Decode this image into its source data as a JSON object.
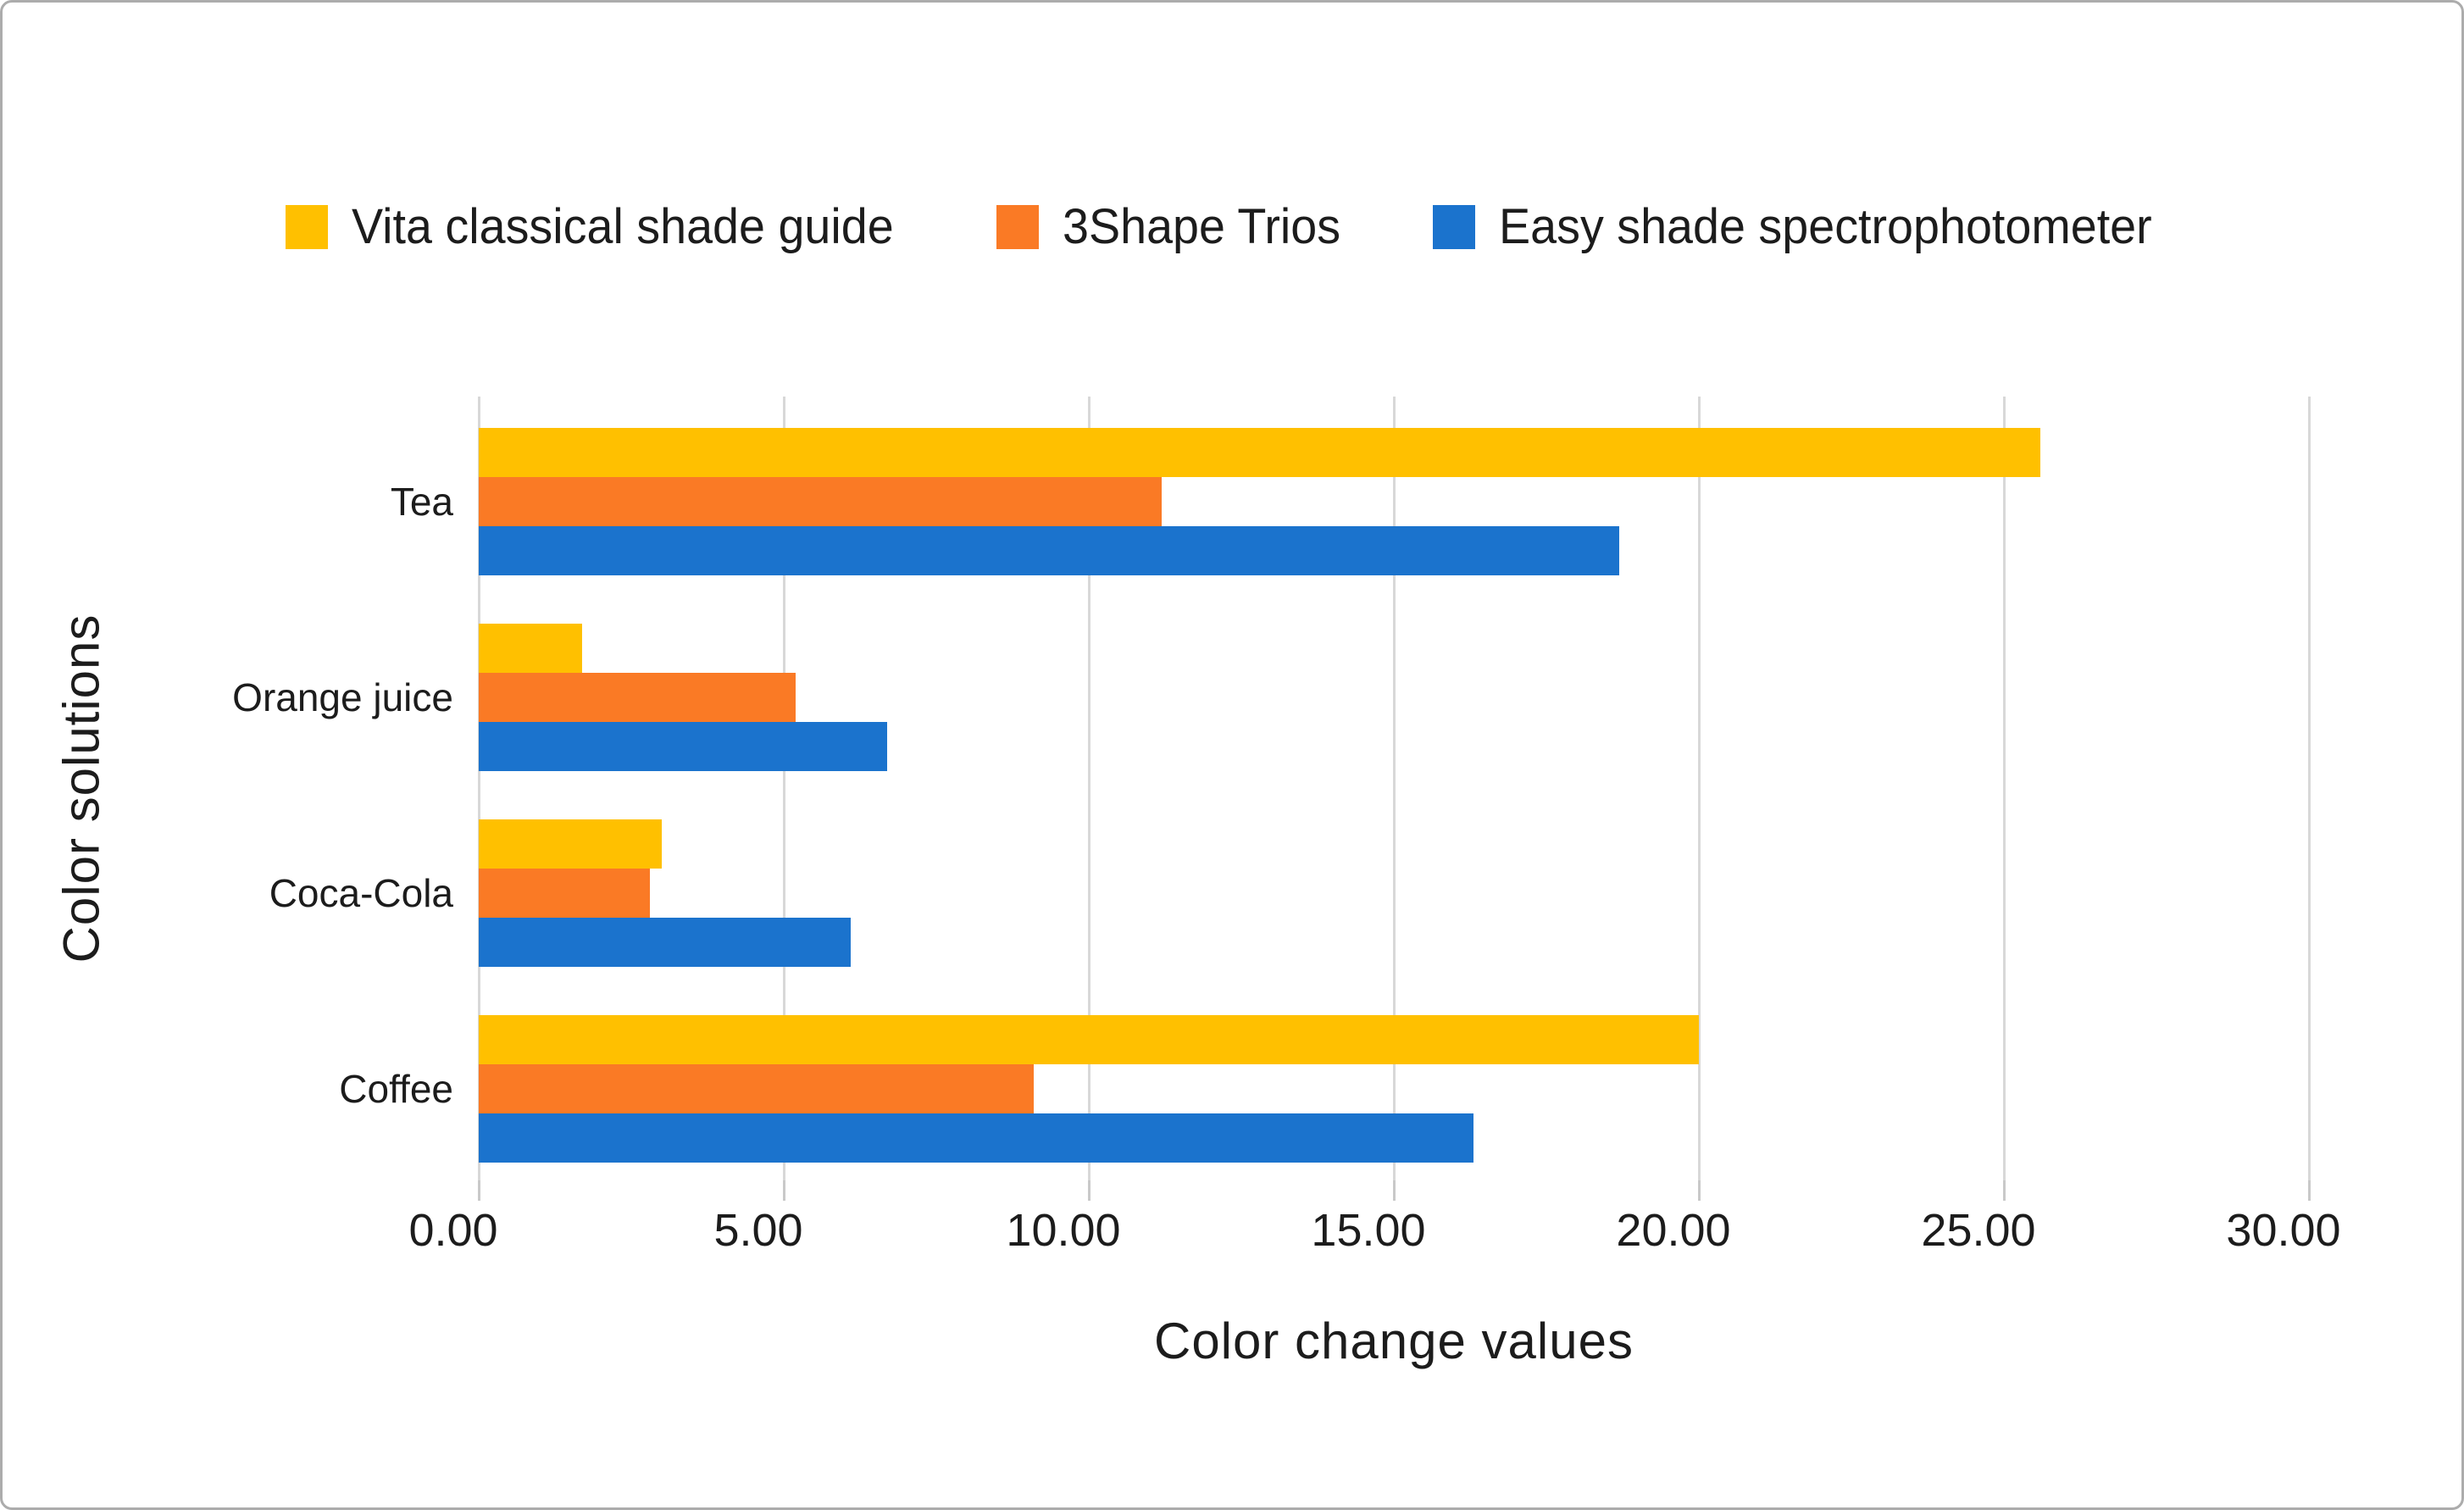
{
  "figure": {
    "background": "#FFFFFF",
    "border_color": "#ACACAC"
  },
  "style": {
    "grid_color": "#D8D8D8",
    "tick_color": "#C9C9C9",
    "text_color": "#1C1C1C"
  },
  "chart_data": {
    "type": "bar",
    "orientation": "horizontal",
    "categories": [
      "Tea",
      "Orange juice",
      "Coca-Cola",
      "Coffee"
    ],
    "series": [
      {
        "name": "Vita classical shade guide",
        "color": "#FFC000",
        "values": [
          25.6,
          1.7,
          3.0,
          20.0
        ]
      },
      {
        "name": "3Shape Trios",
        "color": "#FA7A25",
        "values": [
          11.2,
          5.2,
          2.8,
          9.1
        ]
      },
      {
        "name": "Easy shade spectrophotometer",
        "color": "#1B73CD",
        "values": [
          18.7,
          6.7,
          6.1,
          16.3
        ]
      }
    ],
    "title": "",
    "xlabel": "Color change values",
    "ylabel": "Color solutions",
    "xlim": [
      0,
      30
    ],
    "xticks": [
      "0.00",
      "5.00",
      "10.00",
      "15.00",
      "20.00",
      "25.00",
      "30.00"
    ],
    "grid": true,
    "legend_position": "top"
  }
}
